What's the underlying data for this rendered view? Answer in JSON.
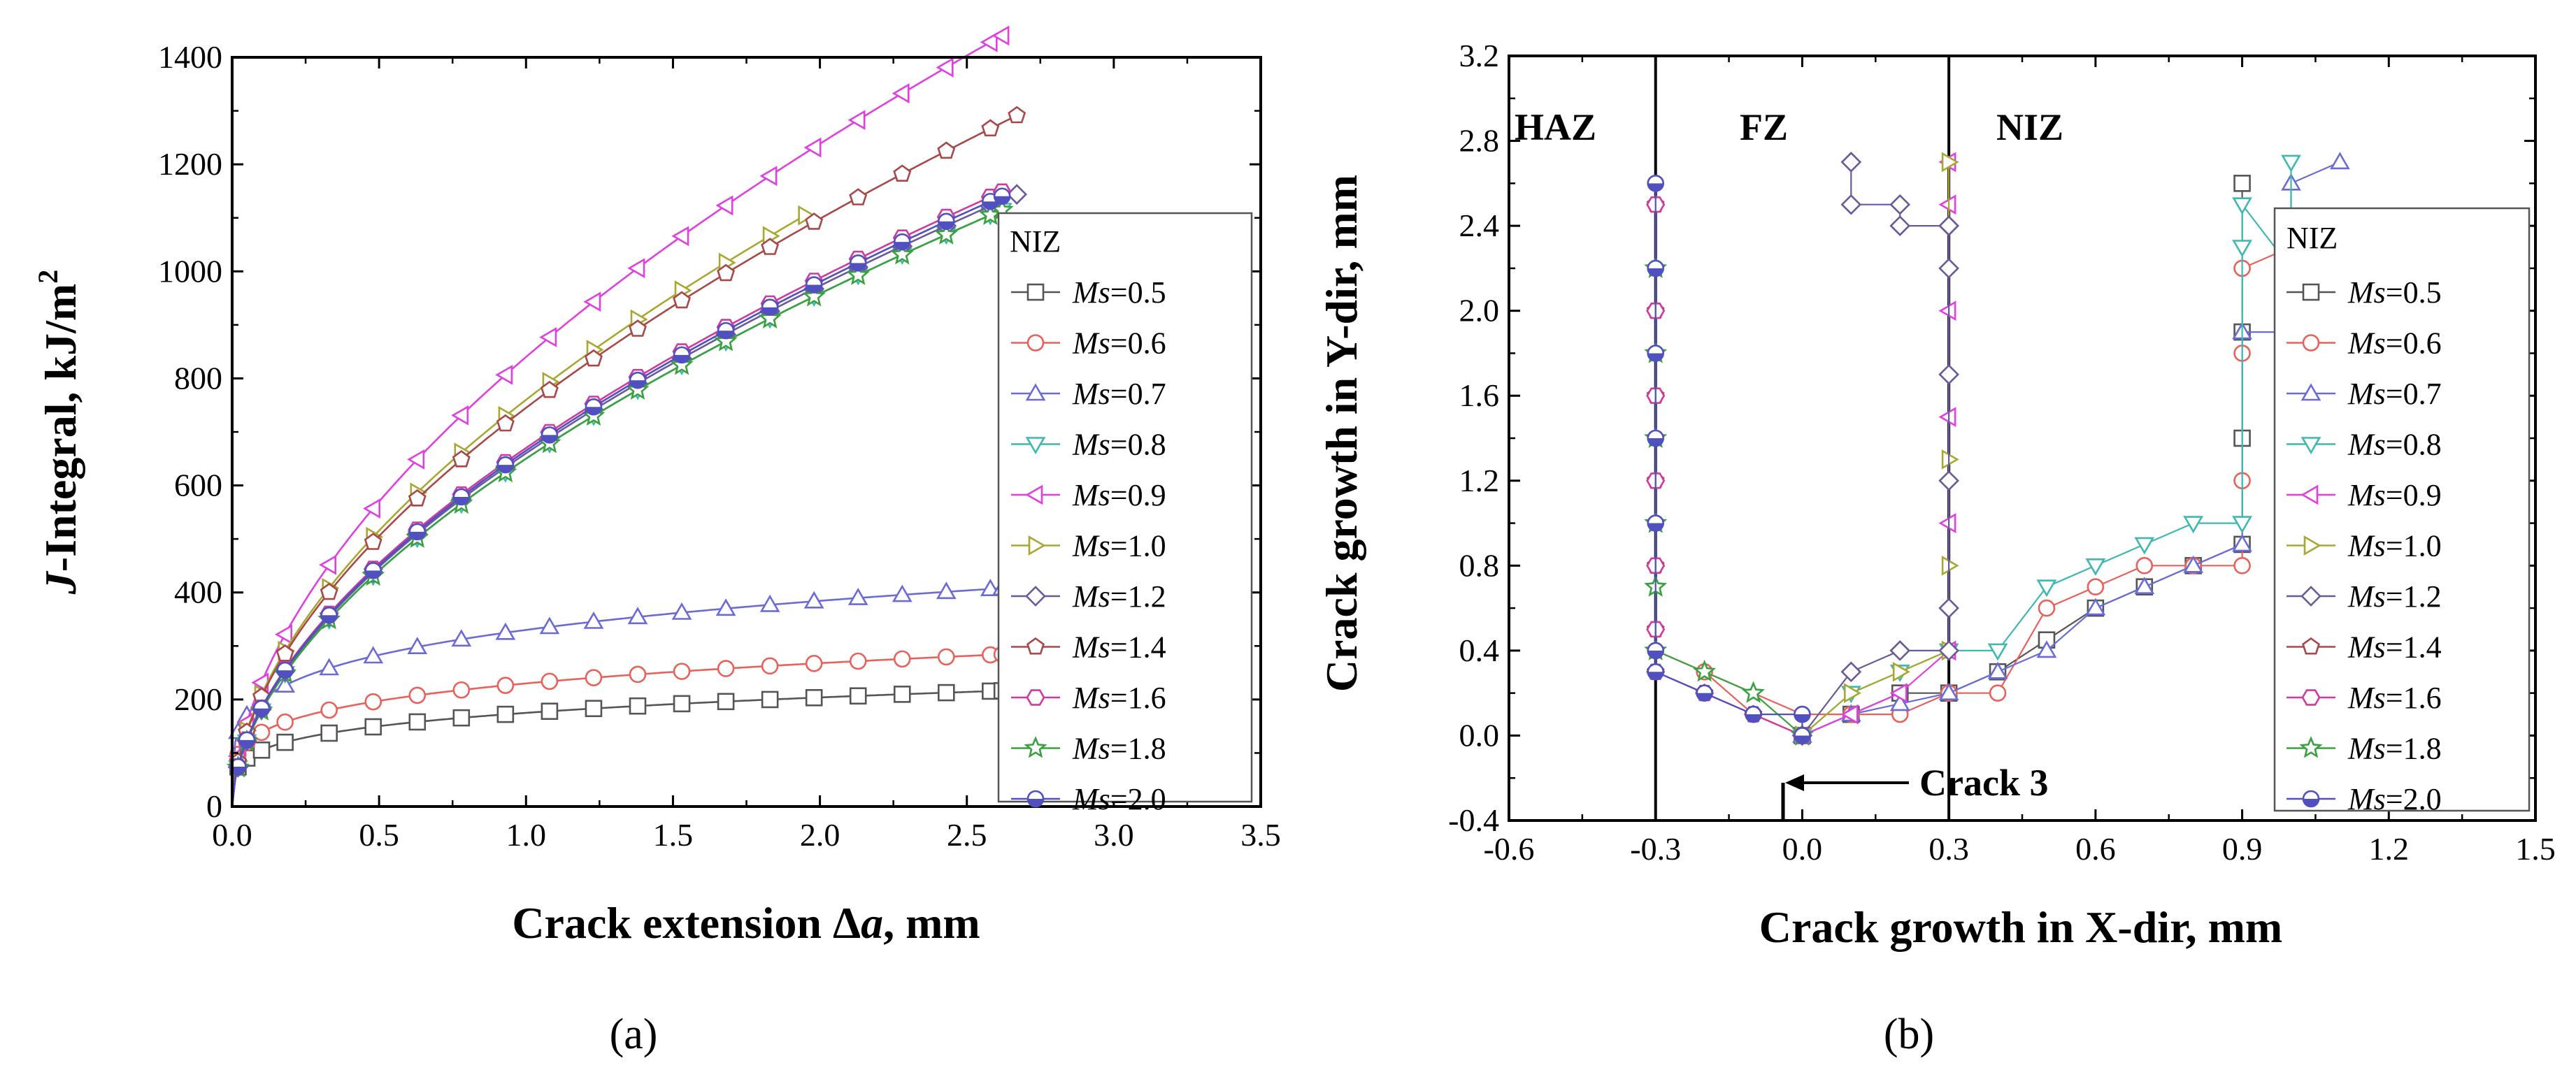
{
  "captions": {
    "a": "(a)",
    "b": "(b)"
  },
  "colors": {
    "Ms=0.5": "#555555",
    "Ms=0.6": "#e8615a",
    "Ms=0.7": "#6b6bd8",
    "Ms=0.8": "#3fb8b0",
    "Ms=0.9": "#e040e0",
    "Ms=1.0": "#a8a830",
    "Ms=1.2": "#6a5a9a",
    "Ms=1.4": "#a84848",
    "Ms=1.6": "#d03aa0",
    "Ms=1.8": "#3aa040",
    "Ms=2.0": "#5050c0"
  },
  "chart_data": [
    {
      "type": "line",
      "id": "a",
      "title": "",
      "ylabel_prefix": "J",
      "ylabel_rest": "-Integral, kJ/m",
      "ylabel_sup": "2",
      "xlabel_prefix": "Crack extension Δ",
      "xlabel_italic": "a",
      "xlabel_suffix": ", mm",
      "xlim": [
        0.0,
        3.5
      ],
      "ylim": [
        0,
        1400
      ],
      "xticks": [
        "0.0",
        "0.5",
        "1.0",
        "1.5",
        "2.0",
        "2.5",
        "3.0",
        "3.5"
      ],
      "yticks": [
        "0",
        "200",
        "400",
        "600",
        "800",
        "1000",
        "1200",
        "1400"
      ],
      "legend_title": "NIZ",
      "legend_position": "right",
      "series": [
        {
          "name": "Ms=0.5",
          "label_italic": "Ms",
          "label_value": "=0.5",
          "marker": "square",
          "J1": 175,
          "xmax": 2.62
        },
        {
          "name": "Ms=0.6",
          "label_italic": "Ms",
          "label_value": "=0.6",
          "marker": "circle",
          "J1": 230,
          "xmax": 2.62
        },
        {
          "name": "Ms=0.7",
          "label_italic": "Ms",
          "label_value": "=0.7",
          "marker": "triangle-up",
          "J1": 330,
          "xmax": 2.62
        },
        {
          "name": "Ms=0.8",
          "label_italic": "Ms",
          "label_value": "=0.8",
          "marker": "triangle-down",
          "J1": 650,
          "xmax": 2.62
        },
        {
          "name": "Ms=0.9",
          "label_italic": "Ms",
          "label_value": "=0.9",
          "marker": "triangle-left",
          "J1": 840,
          "xmax": 2.62
        },
        {
          "name": "Ms=1.0",
          "label_italic": "Ms",
          "label_value": "=1.0",
          "marker": "triangle-right",
          "J1": 760,
          "xmax": 1.95
        },
        {
          "name": "Ms=1.2",
          "label_italic": "Ms",
          "label_value": "=1.2",
          "marker": "diamond",
          "J1": 660,
          "xmax": 2.67
        },
        {
          "name": "Ms=1.4",
          "label_italic": "Ms",
          "label_value": "=1.4",
          "marker": "pentagon",
          "J1": 745,
          "xmax": 2.67
        },
        {
          "name": "Ms=1.6",
          "label_italic": "Ms",
          "label_value": "=1.6",
          "marker": "hexagon",
          "J1": 670,
          "xmax": 2.62
        },
        {
          "name": "Ms=1.8",
          "label_italic": "Ms",
          "label_value": "=1.8",
          "marker": "star",
          "J1": 650,
          "xmax": 2.62
        },
        {
          "name": "Ms=2.0",
          "label_italic": "Ms",
          "label_value": "=2.0",
          "marker": "circle-half",
          "J1": 665,
          "xmax": 2.62
        }
      ]
    },
    {
      "type": "scatter",
      "id": "b",
      "title": "",
      "ylabel": "Crack growth in Y-dir, mm",
      "xlabel": "Crack growth in X-dir, mm",
      "xlim": [
        -0.6,
        1.5
      ],
      "ylim": [
        -0.4,
        3.2
      ],
      "xticks": [
        "-0.6",
        "-0.3",
        "0.0",
        "0.3",
        "0.6",
        "0.9",
        "1.2",
        "1.5"
      ],
      "yticks": [
        "-0.4",
        "0.0",
        "0.4",
        "0.8",
        "1.2",
        "1.6",
        "2.0",
        "2.4",
        "2.8",
        "3.2"
      ],
      "zone_boundaries": [
        -0.3,
        0.3
      ],
      "zones": [
        "HAZ",
        "FZ",
        "NIZ"
      ],
      "annotation": "Crack 3",
      "legend_title": "NIZ",
      "legend_position": "right",
      "series": [
        {
          "name": "Ms=0.5",
          "label_italic": "Ms",
          "label_value": "=0.5",
          "marker": "square",
          "x": [
            0,
            0.1,
            0.2,
            0.3,
            0.4,
            0.5,
            0.6,
            0.7,
            0.8,
            0.9,
            0.9,
            0.9,
            0.9
          ],
          "y": [
            0,
            0.1,
            0.2,
            0.2,
            0.3,
            0.45,
            0.6,
            0.7,
            0.8,
            0.9,
            1.4,
            1.9,
            2.6
          ]
        },
        {
          "name": "Ms=0.6",
          "label_italic": "Ms",
          "label_value": "=0.6",
          "marker": "circle",
          "x": [
            0,
            -0.1,
            -0.2,
            -0.3,
            0,
            0.1,
            0.2,
            0.3,
            0.4,
            0.5,
            0.6,
            0.7,
            0.8,
            0.9,
            0.9,
            0.9,
            0.9,
            1.0
          ],
          "y": [
            0,
            0.1,
            0.3,
            0.4,
            0.1,
            0.1,
            0.1,
            0.2,
            0.2,
            0.6,
            0.7,
            0.8,
            0.8,
            0.8,
            1.2,
            1.8,
            2.2,
            2.3
          ]
        },
        {
          "name": "Ms=0.7",
          "label_italic": "Ms",
          "label_value": "=0.7",
          "marker": "triangle-up",
          "x": [
            0,
            0.1,
            0.2,
            0.3,
            0.4,
            0.5,
            0.6,
            0.7,
            0.8,
            0.9,
            0.9,
            1.0,
            1.0,
            1.1
          ],
          "y": [
            0,
            0.1,
            0.15,
            0.2,
            0.3,
            0.4,
            0.6,
            0.7,
            0.8,
            0.9,
            1.9,
            1.9,
            2.6,
            2.7
          ]
        },
        {
          "name": "Ms=0.8",
          "label_italic": "Ms",
          "label_value": "=0.8",
          "marker": "triangle-down",
          "x": [
            0,
            0.1,
            0.2,
            0.3,
            0.4,
            0.5,
            0.6,
            0.7,
            0.8,
            0.9,
            0.9,
            0.9,
            1.0,
            1.0
          ],
          "y": [
            0,
            0.2,
            0.3,
            0.4,
            0.4,
            0.7,
            0.8,
            0.9,
            1.0,
            1.0,
            2.3,
            2.5,
            2.2,
            2.7
          ]
        },
        {
          "name": "Ms=0.9",
          "label_italic": "Ms",
          "label_value": "=0.9",
          "marker": "triangle-left",
          "x": [
            0,
            0.1,
            0.2,
            0.3,
            0.3,
            0.3,
            0.3,
            0.3,
            0.3
          ],
          "y": [
            0,
            0.1,
            0.2,
            0.4,
            1.0,
            1.5,
            2.0,
            2.5,
            2.7
          ]
        },
        {
          "name": "Ms=1.0",
          "label_italic": "Ms",
          "label_value": "=1.0",
          "marker": "triangle-right",
          "x": [
            0,
            0.1,
            0.2,
            0.3,
            0.3,
            0.3,
            0.3
          ],
          "y": [
            0,
            0.2,
            0.3,
            0.4,
            0.8,
            1.3,
            2.7
          ]
        },
        {
          "name": "Ms=1.2",
          "label_italic": "Ms",
          "label_value": "=1.2",
          "marker": "diamond",
          "x": [
            0,
            0.1,
            0.2,
            0.3,
            0.3,
            0.3,
            0.3,
            0.3,
            0.3,
            0.3,
            0.2,
            0.2,
            0.1,
            0.1
          ],
          "y": [
            0,
            0.3,
            0.4,
            0.4,
            0.6,
            1.2,
            1.7,
            2.2,
            2.4,
            2.4,
            2.4,
            2.5,
            2.5,
            2.7
          ]
        },
        {
          "name": "Ms=1.4",
          "label_italic": "Ms",
          "label_value": "=1.4",
          "marker": "pentagon",
          "x": [
            0,
            -0.1,
            -0.2,
            -0.3,
            -0.3,
            -0.3,
            -0.3,
            -0.3,
            -0.3,
            -0.3
          ],
          "y": [
            0,
            0.1,
            0.2,
            0.3,
            0.5,
            0.8,
            1.2,
            1.6,
            2.0,
            2.5
          ]
        },
        {
          "name": "Ms=1.6",
          "label_italic": "Ms",
          "label_value": "=1.6",
          "marker": "hexagon",
          "x": [
            0,
            -0.1,
            -0.2,
            -0.3,
            -0.3,
            -0.3,
            -0.3,
            -0.3,
            -0.3,
            -0.3
          ],
          "y": [
            0,
            0.1,
            0.2,
            0.3,
            0.5,
            0.8,
            1.2,
            1.6,
            2.0,
            2.5
          ]
        },
        {
          "name": "Ms=1.8",
          "label_italic": "Ms",
          "label_value": "=1.8",
          "marker": "star",
          "x": [
            0,
            -0.1,
            -0.2,
            -0.3,
            -0.3,
            -0.3,
            -0.3,
            -0.3,
            -0.3
          ],
          "y": [
            0,
            0.2,
            0.3,
            0.4,
            0.7,
            1.0,
            1.4,
            1.8,
            2.2
          ]
        },
        {
          "name": "Ms=2.0",
          "label_italic": "Ms",
          "label_value": "=2.0",
          "marker": "circle-half",
          "x": [
            0,
            0,
            -0.1,
            -0.2,
            -0.3,
            -0.3,
            -0.3,
            -0.3,
            -0.3,
            -0.3,
            -0.3
          ],
          "y": [
            0,
            0.1,
            0.1,
            0.2,
            0.3,
            0.4,
            1.0,
            1.4,
            1.8,
            2.2,
            2.6
          ]
        }
      ]
    }
  ]
}
